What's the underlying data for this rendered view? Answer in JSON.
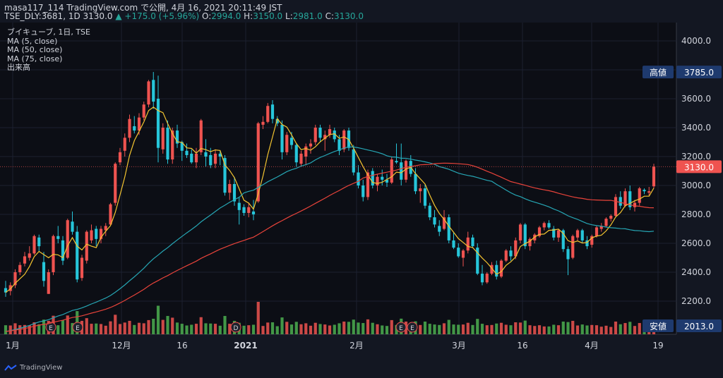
{
  "header": {
    "line1_user": "masa117_114",
    "line1_rest": "TradingView.com で公開, 4月 16, 2021 20:11:49 JST",
    "symbol": "TSE_DLY:3681",
    "interval": "1D",
    "last": "3130.0",
    "change": "+175.0 (+5.96%)",
    "ohlc_o_label": "O:",
    "ohlc_o": "2994.0",
    "ohlc_h_label": "H:",
    "ohlc_h": "3150.0",
    "ohlc_l_label": "L:",
    "ohlc_l": "2981.0",
    "ohlc_c_label": "C:",
    "ohlc_c": "3130.0"
  },
  "legend": [
    "ブイキューブ, 1日, TSE",
    "MA (5, close)",
    "MA (50, close)",
    "MA (75, close)",
    "出来高"
  ],
  "price_axis": {
    "ticks": [
      "4000.0",
      "3800.0",
      "3600.0",
      "3400.0",
      "3200.0",
      "3000.0",
      "2800.0",
      "2600.0",
      "2400.0",
      "2200.0"
    ],
    "high_label": "高値",
    "high_value": "3785.0",
    "low_label": "安値",
    "low_value": "2013.0",
    "last_value": "3130.0"
  },
  "time_axis": [
    "1月",
    "12月",
    "16",
    "2021",
    "2月",
    "3月",
    "16",
    "4月",
    "19"
  ],
  "event_markers": [
    "E",
    "E",
    "D",
    "E",
    "E"
  ],
  "footer": {
    "brand": "TradingView"
  },
  "colors": {
    "background": "#131722",
    "up": "#ef5350",
    "down": "#26c6da",
    "ma5": "#f4c430",
    "ma50": "#26a6b4",
    "ma75": "#e8433a",
    "vol_up": "#ef5350",
    "vol_down": "#4caf50",
    "axis_label_bg": "#1e3a6e",
    "last_price_bg": "#ef5350"
  },
  "chart_data": {
    "type": "candlestick",
    "ylim": [
      2050,
      4130
    ],
    "candles": [
      [
        2290,
        2340,
        2230,
        2260
      ],
      [
        2270,
        2330,
        2240,
        2310
      ],
      [
        2310,
        2420,
        2290,
        2400
      ],
      [
        2400,
        2470,
        2380,
        2450
      ],
      [
        2460,
        2540,
        2440,
        2510
      ],
      [
        2500,
        2580,
        2480,
        2530
      ],
      [
        2530,
        2660,
        2520,
        2650
      ],
      [
        2640,
        2660,
        2540,
        2580
      ],
      [
        2470,
        2540,
        2300,
        2340
      ],
      [
        2250,
        2420,
        2250,
        2400
      ],
      [
        2400,
        2660,
        2380,
        2650
      ],
      [
        2650,
        2720,
        2600,
        2630
      ],
      [
        2620,
        2650,
        2450,
        2480
      ],
      [
        2500,
        2770,
        2490,
        2760
      ],
      [
        2750,
        2820,
        2660,
        2680
      ],
      [
        2680,
        2720,
        2330,
        2350
      ],
      [
        2360,
        2520,
        2340,
        2500
      ],
      [
        2480,
        2690,
        2460,
        2680
      ],
      [
        2620,
        2730,
        2600,
        2690
      ],
      [
        2700,
        2720,
        2580,
        2630
      ],
      [
        2630,
        2720,
        2600,
        2700
      ],
      [
        2690,
        2740,
        2650,
        2720
      ],
      [
        2730,
        2880,
        2720,
        2870
      ],
      [
        2880,
        3160,
        2860,
        3150
      ],
      [
        3160,
        3260,
        3140,
        3230
      ],
      [
        3240,
        3360,
        3200,
        3330
      ],
      [
        3330,
        3490,
        3300,
        3460
      ],
      [
        3410,
        3480,
        3360,
        3380
      ],
      [
        3380,
        3500,
        3350,
        3470
      ],
      [
        3470,
        3580,
        3450,
        3560
      ],
      [
        3560,
        3730,
        3540,
        3720
      ],
      [
        3730,
        3785,
        3530,
        3580
      ],
      [
        3600,
        3760,
        3160,
        3260
      ],
      [
        3250,
        3430,
        3220,
        3400
      ],
      [
        3400,
        3450,
        3150,
        3180
      ],
      [
        3180,
        3400,
        3150,
        3380
      ],
      [
        3380,
        3420,
        3260,
        3290
      ],
      [
        3300,
        3310,
        3170,
        3240
      ],
      [
        3240,
        3290,
        3190,
        3210
      ],
      [
        3220,
        3250,
        3150,
        3160
      ],
      [
        3160,
        3260,
        3120,
        3220
      ],
      [
        3230,
        3460,
        3210,
        3450
      ],
      [
        3230,
        3320,
        3130,
        3200
      ],
      [
        3210,
        3260,
        3120,
        3140
      ],
      [
        3150,
        3250,
        3120,
        3220
      ],
      [
        3220,
        3240,
        3140,
        3200
      ],
      [
        3190,
        3210,
        2930,
        2950
      ],
      [
        2950,
        3040,
        2900,
        3010
      ],
      [
        3010,
        3060,
        2860,
        2890
      ],
      [
        2880,
        2920,
        2730,
        2830
      ],
      [
        2850,
        2870,
        2790,
        2810
      ],
      [
        2810,
        2880,
        2780,
        2850
      ],
      [
        2820,
        2900,
        2760,
        2800
      ],
      [
        2890,
        3440,
        2880,
        3430
      ],
      [
        3420,
        3480,
        3390,
        3440
      ],
      [
        3440,
        3570,
        3430,
        3550
      ],
      [
        3560,
        3590,
        3430,
        3460
      ],
      [
        3460,
        3480,
        3410,
        3430
      ],
      [
        3420,
        3450,
        3180,
        3230
      ],
      [
        3230,
        3370,
        3210,
        3350
      ],
      [
        3330,
        3370,
        3250,
        3280
      ],
      [
        3280,
        3290,
        3130,
        3160
      ],
      [
        3150,
        3240,
        3130,
        3220
      ],
      [
        3200,
        3290,
        3140,
        3270
      ],
      [
        3270,
        3320,
        3220,
        3290
      ],
      [
        3300,
        3420,
        3280,
        3400
      ],
      [
        3400,
        3420,
        3300,
        3330
      ],
      [
        3320,
        3380,
        3240,
        3350
      ],
      [
        3350,
        3420,
        3330,
        3390
      ],
      [
        3380,
        3400,
        3300,
        3320
      ],
      [
        3320,
        3350,
        3210,
        3240
      ],
      [
        3250,
        3390,
        3230,
        3380
      ],
      [
        3380,
        3400,
        3240,
        3260
      ],
      [
        3250,
        3280,
        3070,
        3090
      ],
      [
        3090,
        3140,
        2980,
        3000
      ],
      [
        3000,
        3040,
        2890,
        2920
      ],
      [
        2920,
        3110,
        2900,
        3090
      ],
      [
        3100,
        3120,
        2980,
        3000
      ],
      [
        3000,
        3080,
        2960,
        3060
      ],
      [
        3060,
        3110,
        3000,
        3040
      ],
      [
        3040,
        3080,
        2990,
        3020
      ],
      [
        3020,
        3200,
        3010,
        3180
      ],
      [
        3170,
        3290,
        3150,
        3160
      ],
      [
        3160,
        3290,
        3000,
        3040
      ],
      [
        3040,
        3180,
        3020,
        3170
      ],
      [
        3170,
        3210,
        3060,
        3080
      ],
      [
        3080,
        3120,
        2940,
        2960
      ],
      [
        2960,
        3010,
        2880,
        2980
      ],
      [
        2980,
        3010,
        2840,
        2860
      ],
      [
        2860,
        2880,
        2760,
        2780
      ],
      [
        2780,
        2830,
        2710,
        2730
      ],
      [
        2720,
        2760,
        2650,
        2680
      ],
      [
        2700,
        2830,
        2690,
        2780
      ],
      [
        2780,
        2800,
        2600,
        2620
      ],
      [
        2620,
        2680,
        2560,
        2570
      ],
      [
        2570,
        2600,
        2500,
        2510
      ],
      [
        2500,
        2560,
        2440,
        2550
      ],
      [
        2550,
        2680,
        2530,
        2640
      ],
      [
        2640,
        2660,
        2570,
        2580
      ],
      [
        2570,
        2600,
        2380,
        2390
      ],
      [
        2390,
        2450,
        2310,
        2330
      ],
      [
        2330,
        2400,
        2320,
        2390
      ],
      [
        2390,
        2470,
        2380,
        2450
      ],
      [
        2450,
        2480,
        2350,
        2370
      ],
      [
        2370,
        2490,
        2360,
        2480
      ],
      [
        2480,
        2560,
        2470,
        2550
      ],
      [
        2550,
        2580,
        2480,
        2510
      ],
      [
        2510,
        2640,
        2490,
        2620
      ],
      [
        2620,
        2740,
        2600,
        2730
      ],
      [
        2730,
        2740,
        2560,
        2580
      ],
      [
        2580,
        2640,
        2550,
        2630
      ],
      [
        2620,
        2670,
        2600,
        2660
      ],
      [
        2650,
        2720,
        2640,
        2710
      ],
      [
        2710,
        2750,
        2690,
        2740
      ],
      [
        2740,
        2760,
        2700,
        2710
      ],
      [
        2700,
        2720,
        2620,
        2640
      ],
      [
        2640,
        2700,
        2610,
        2690
      ],
      [
        2690,
        2700,
        2540,
        2560
      ],
      [
        2560,
        2580,
        2380,
        2490
      ],
      [
        2500,
        2660,
        2490,
        2650
      ],
      [
        2640,
        2700,
        2620,
        2690
      ],
      [
        2690,
        2700,
        2600,
        2620
      ],
      [
        2620,
        2650,
        2560,
        2580
      ],
      [
        2590,
        2660,
        2570,
        2650
      ],
      [
        2650,
        2720,
        2640,
        2710
      ],
      [
        2700,
        2740,
        2680,
        2720
      ],
      [
        2720,
        2780,
        2710,
        2770
      ],
      [
        2770,
        2800,
        2750,
        2790
      ],
      [
        2790,
        2940,
        2780,
        2920
      ],
      [
        2920,
        2960,
        2840,
        2860
      ],
      [
        2860,
        2980,
        2850,
        2960
      ],
      [
        2960,
        3000,
        2830,
        2850
      ],
      [
        2850,
        2900,
        2820,
        2880
      ],
      [
        2880,
        2990,
        2860,
        2980
      ],
      [
        2970,
        2980,
        2940,
        2960
      ],
      [
        2950,
        2990,
        2930,
        2960
      ],
      [
        2994,
        3150,
        2981,
        3130
      ]
    ],
    "volume_max_fraction": 1.0
  }
}
